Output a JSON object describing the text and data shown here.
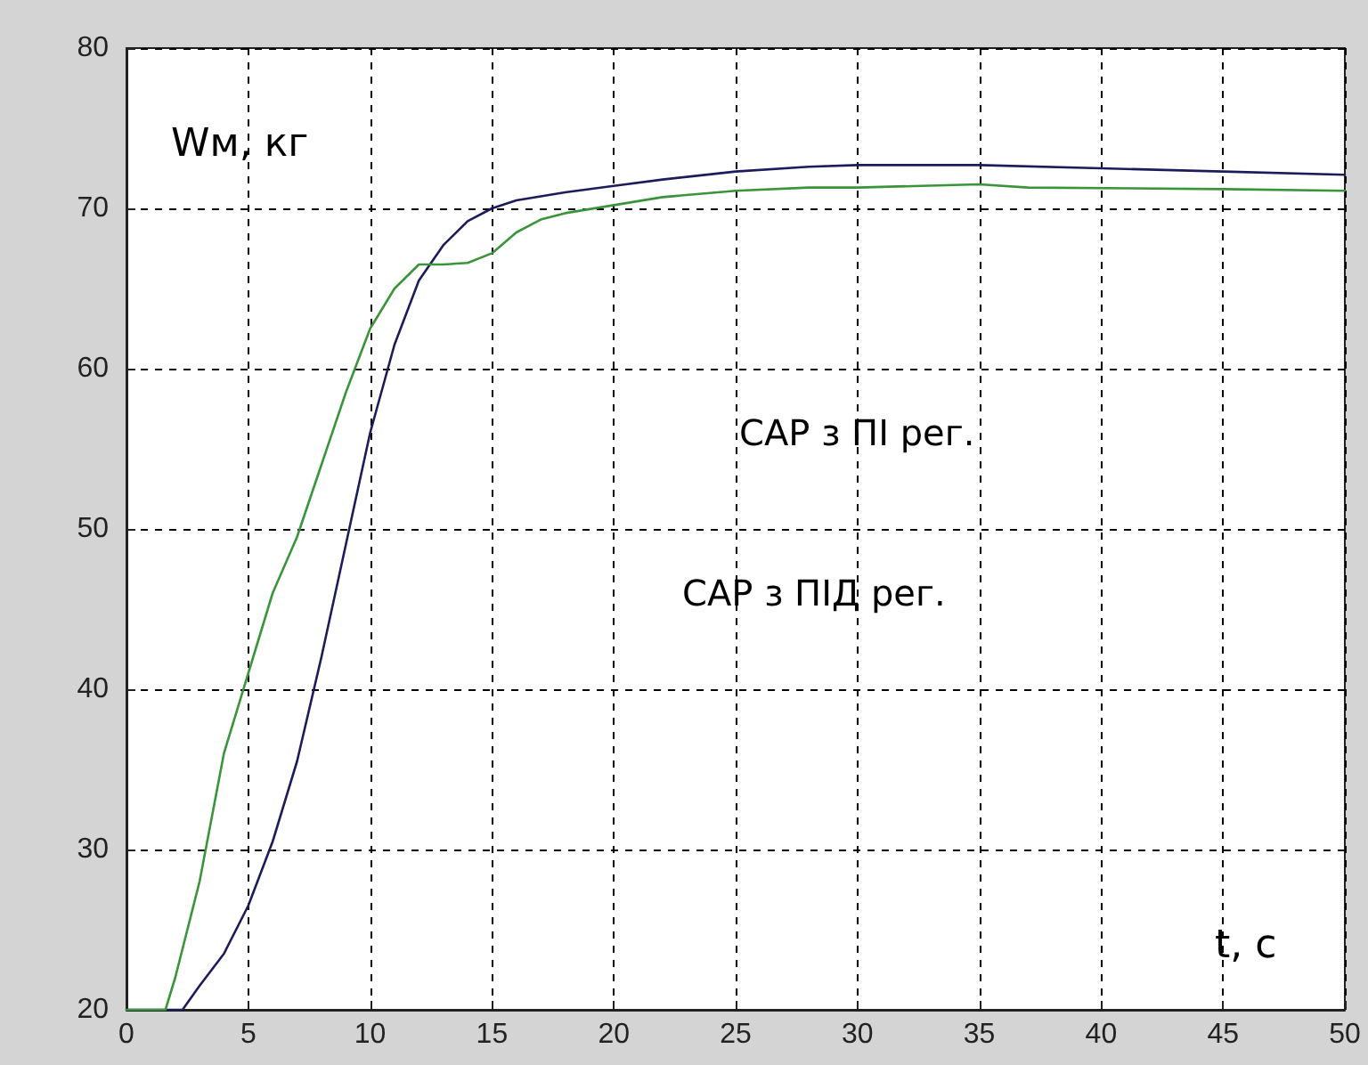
{
  "chart_data": {
    "type": "line",
    "xlabel": "t, с",
    "ylabel": "Wм, кг",
    "annotations": [
      "САР з ПІ рег.",
      "САР з ПІД рег."
    ],
    "xlim": [
      0,
      50
    ],
    "xticks": [
      0,
      5,
      10,
      15,
      20,
      25,
      30,
      35,
      40,
      45,
      50
    ],
    "ylim": [
      20,
      80
    ],
    "yticks": [
      20,
      30,
      40,
      50,
      60,
      70,
      80
    ],
    "grid": true,
    "marker": "none",
    "line_style": "solid",
    "series": [
      {
        "color": "#1c1c5c",
        "x": [
          0,
          2.3,
          3,
          4,
          5,
          6,
          7,
          8,
          9,
          10,
          11,
          12,
          13,
          14,
          15,
          16,
          18,
          20,
          22,
          25,
          28,
          30,
          35,
          40,
          45,
          50
        ],
        "values": [
          20,
          20,
          21.5,
          23.5,
          26.5,
          30.5,
          35.5,
          42,
          49,
          56,
          61.5,
          65.5,
          67.7,
          69.2,
          70,
          70.5,
          71,
          71.4,
          71.8,
          72.3,
          72.6,
          72.7,
          72.7,
          72.5,
          72.3,
          72.1
        ]
      },
      {
        "color": "#3a943a",
        "x": [
          0,
          1.6,
          2,
          3,
          4,
          5,
          6,
          7,
          8,
          9,
          10,
          11,
          12,
          13,
          14,
          15,
          16,
          17,
          18,
          20,
          22,
          25,
          28,
          30,
          35,
          37,
          45,
          50
        ],
        "values": [
          20,
          20,
          22,
          28,
          36,
          41,
          46,
          49.5,
          54,
          58.5,
          62.5,
          65,
          66.5,
          66.5,
          66.6,
          67.2,
          68.5,
          69.3,
          69.7,
          70.2,
          70.7,
          71.1,
          71.3,
          71.3,
          71.5,
          71.3,
          71.2,
          71.1
        ]
      }
    ]
  }
}
